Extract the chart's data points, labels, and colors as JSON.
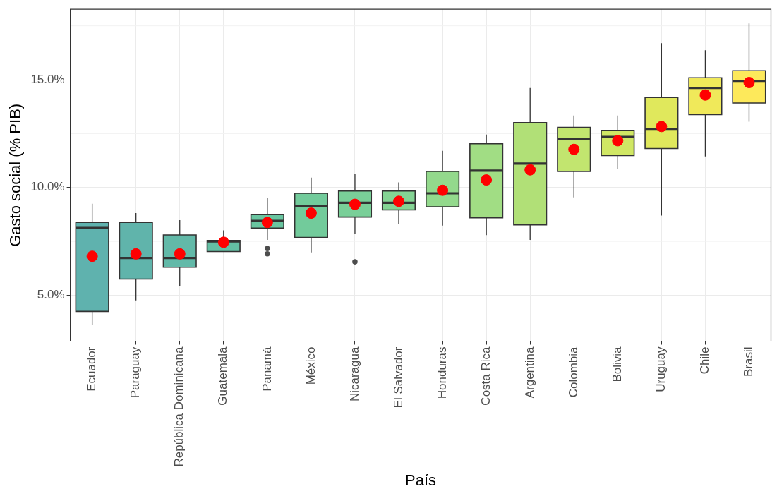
{
  "chart_data": {
    "type": "box",
    "xlabel": "País",
    "ylabel": "Gasto social (% PIB)",
    "categories": [
      "Ecuador",
      "Paraguay",
      "República Dominicana",
      "Guatemala",
      "Panamá",
      "México",
      "Nicaragua",
      "El Salvador",
      "Honduras",
      "Costa Rica",
      "Argentina",
      "Colombia",
      "Bolivia",
      "Uruguay",
      "Chile",
      "Brasil"
    ],
    "ylim": [
      2.87,
      18.27
    ],
    "yticks": [
      {
        "value": 5,
        "label": "5.0%"
      },
      {
        "value": 10,
        "label": "10.0%"
      },
      {
        "value": 15,
        "label": "15.0%"
      }
    ],
    "grid": true,
    "marker": "circle",
    "series": [
      {
        "type": "box",
        "colors": [
          "#5fb2ae",
          "#60b4ab",
          "#62b9a8",
          "#64bfa4",
          "#69c5a0",
          "#72cb9b",
          "#79cf98",
          "#84d494",
          "#93d98c",
          "#a1dd84",
          "#b1e077",
          "#c2e56f",
          "#d0e764",
          "#e0e85c",
          "#f0e95a",
          "#fde95b"
        ],
        "boxes": [
          {
            "low": 3.63,
            "q1": 4.25,
            "median": 8.12,
            "q3": 8.38,
            "high": 9.25
          },
          {
            "low": 4.76,
            "q1": 5.75,
            "median": 6.73,
            "q3": 8.38,
            "high": 8.81
          },
          {
            "low": 5.42,
            "q1": 6.3,
            "median": 6.73,
            "q3": 7.8,
            "high": 8.49
          },
          {
            "low": 7.03,
            "q1": 7.03,
            "median": 7.5,
            "q3": 7.54,
            "high": 8.01
          },
          {
            "low": 7.57,
            "q1": 8.12,
            "median": 8.45,
            "q3": 8.74,
            "high": 9.5,
            "outliers": [
              7.17,
              6.92
            ]
          },
          {
            "low": 6.99,
            "q1": 7.68,
            "median": 9.14,
            "q3": 9.73,
            "high": 10.46
          },
          {
            "low": 7.83,
            "q1": 8.63,
            "median": 9.29,
            "q3": 9.84,
            "high": 10.64,
            "outliers": [
              6.55
            ]
          },
          {
            "low": 8.3,
            "q1": 8.96,
            "median": 9.29,
            "q3": 9.84,
            "high": 10.24
          },
          {
            "low": 8.23,
            "q1": 9.11,
            "median": 9.73,
            "q3": 10.75,
            "high": 11.7
          },
          {
            "low": 7.79,
            "q1": 8.59,
            "median": 10.78,
            "q3": 12.03,
            "high": 12.46
          },
          {
            "low": 7.57,
            "q1": 8.27,
            "median": 11.11,
            "q3": 13.01,
            "high": 14.62
          },
          {
            "low": 9.54,
            "q1": 10.75,
            "median": 12.24,
            "q3": 12.79,
            "high": 13.34
          },
          {
            "low": 10.86,
            "q1": 11.48,
            "median": 12.35,
            "q3": 12.65,
            "high": 13.34
          },
          {
            "low": 8.7,
            "q1": 11.81,
            "median": 12.72,
            "q3": 14.18,
            "high": 16.7
          },
          {
            "low": 11.44,
            "q1": 13.38,
            "median": 14.62,
            "q3": 15.09,
            "high": 16.37
          },
          {
            "low": 13.05,
            "q1": 13.92,
            "median": 14.95,
            "q3": 15.42,
            "high": 17.61
          }
        ]
      },
      {
        "type": "scatter",
        "color": "#ff0000",
        "x": [
          "Ecuador",
          "Paraguay",
          "República Dominicana",
          "Guatemala",
          "Panamá",
          "México",
          "Nicaragua",
          "El Salvador",
          "Honduras",
          "Costa Rica",
          "Argentina",
          "Colombia",
          "Bolivia",
          "Uruguay",
          "Chile",
          "Brasil"
        ],
        "values": [
          6.81,
          6.92,
          6.92,
          7.46,
          8.38,
          8.81,
          9.22,
          9.36,
          9.87,
          10.35,
          10.82,
          11.77,
          12.17,
          12.83,
          14.29,
          14.87
        ]
      }
    ]
  }
}
